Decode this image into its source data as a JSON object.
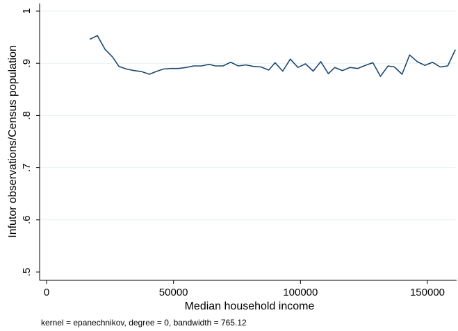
{
  "chart_data": {
    "type": "line",
    "title": "",
    "xlabel": "Median household income",
    "ylabel": "Infutor observations/Census population",
    "note": "kernel = epanechnikov, degree = 0, bandwidth = 765.12",
    "xlim": [
      0,
      160000
    ],
    "ylim": [
      0.5,
      1.0
    ],
    "x_ticks": [
      0,
      50000,
      100000,
      150000
    ],
    "x_tick_labels": [
      "0",
      "50000",
      "100000",
      "150000"
    ],
    "y_ticks": [
      0.5,
      0.6,
      0.7,
      0.8,
      0.9,
      1.0
    ],
    "y_tick_labels": [
      ".5",
      ".6",
      ".7",
      ".8",
      ".9",
      "1"
    ],
    "grid": true,
    "line_color": "#1a476f",
    "grid_color": "#eaf2f3",
    "series": [
      {
        "x": [
          17000,
          20000,
          23000,
          26000,
          28500,
          31500,
          34500,
          37500,
          40500,
          43000,
          46000,
          49000,
          52000,
          55000,
          58000,
          61000,
          64000,
          66500,
          69500,
          72500,
          75500,
          78500,
          81500,
          84500,
          87500,
          90000,
          93000,
          96000,
          99000,
          102000,
          105000,
          108000,
          111000,
          113500,
          116500,
          119500,
          122500,
          125500,
          128500,
          131500,
          134500,
          137000,
          140000,
          143000,
          146000,
          149000,
          152000,
          155000,
          158000,
          161000
        ],
        "y": [
          0.946,
          0.953,
          0.927,
          0.912,
          0.894,
          0.889,
          0.886,
          0.884,
          0.879,
          0.884,
          0.889,
          0.89,
          0.89,
          0.892,
          0.895,
          0.895,
          0.898,
          0.895,
          0.895,
          0.902,
          0.895,
          0.897,
          0.894,
          0.893,
          0.887,
          0.901,
          0.885,
          0.908,
          0.892,
          0.899,
          0.885,
          0.903,
          0.88,
          0.892,
          0.886,
          0.892,
          0.89,
          0.896,
          0.901,
          0.875,
          0.895,
          0.893,
          0.879,
          0.916,
          0.903,
          0.896,
          0.902,
          0.893,
          0.895,
          0.926
        ]
      }
    ]
  }
}
